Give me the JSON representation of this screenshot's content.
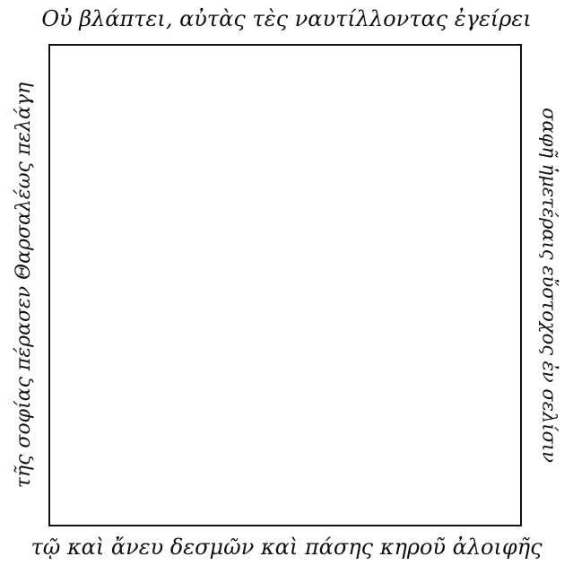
{
  "captions": {
    "top": "Οὐ βλάπτει, αὐτὰς τὲς ναυτίλλοντας ἐγείρει",
    "left": "τῆς σοφίας πέρασεν Θαρσαλέως πελάγη",
    "right": "σαφῆ ἡμετέραις εὔστοχος ἐν σελίσιν",
    "bottom": "τῷ καὶ ἄνευ δεσμῶν καὶ πάσης κηροῦ ἀλοιφῆς"
  },
  "colors": {
    "text": "#111111",
    "frame": "#111111",
    "background": "#ffffff"
  }
}
